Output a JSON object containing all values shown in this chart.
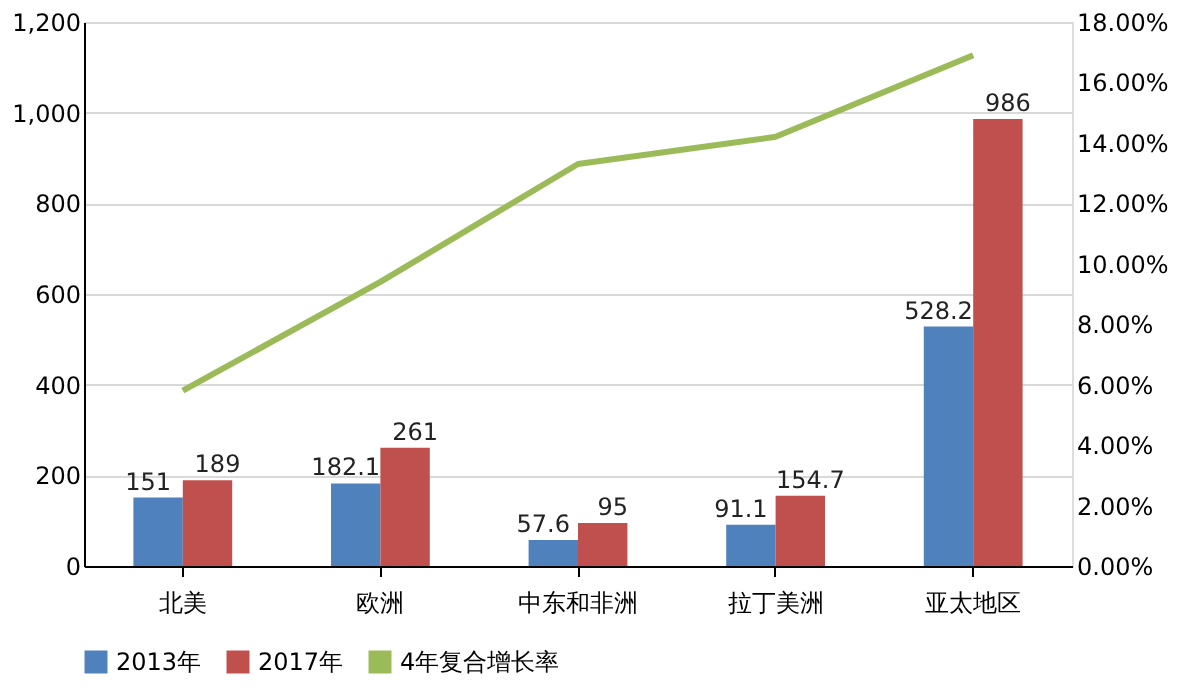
{
  "chart_data": {
    "type": "bar",
    "categories": [
      "北美",
      "欧洲",
      "中东和非洲",
      "拉丁美洲",
      "亚太地区"
    ],
    "series": [
      {
        "name": "2013年",
        "color": "#4f81bd",
        "values": [
          151,
          182.1,
          57.6,
          91.1,
          528.2
        ],
        "value_labels": [
          "151",
          "182.1",
          "57.6",
          "91.1",
          "528.2"
        ]
      },
      {
        "name": "2017年",
        "color": "#c0504d",
        "values": [
          189,
          261,
          95,
          154.7,
          986
        ],
        "value_labels": [
          "189",
          "261",
          "95",
          "154.7",
          "986"
        ]
      },
      {
        "name": "4年复合增长率",
        "type": "line",
        "axis": "y2",
        "color": "#9bbb59",
        "values": [
          5.8,
          9.4,
          13.3,
          14.2,
          16.9
        ]
      }
    ],
    "ylim": [
      0,
      1200
    ],
    "yticks": [
      0,
      200,
      400,
      600,
      800,
      {
        "value": 1000,
        "label": "1,000"
      },
      {
        "value": 1200,
        "label": "1,200"
      }
    ],
    "y2lim": [
      0,
      18
    ],
    "y2ticks": [
      {
        "value": 0,
        "label": "0.00%"
      },
      {
        "value": 2,
        "label": "2.00%"
      },
      {
        "value": 4,
        "label": "4.00%"
      },
      {
        "value": 6,
        "label": "6.00%"
      },
      {
        "value": 8,
        "label": "8.00%"
      },
      {
        "value": 10,
        "label": "10.00%"
      },
      {
        "value": 12,
        "label": "12.00%"
      },
      {
        "value": 14,
        "label": "14.00%"
      },
      {
        "value": 16,
        "label": "16.00%"
      },
      {
        "value": 18,
        "label": "18.00%"
      }
    ],
    "grid": "y",
    "legend": "bottom",
    "line_style": "solid",
    "marker": "none"
  }
}
